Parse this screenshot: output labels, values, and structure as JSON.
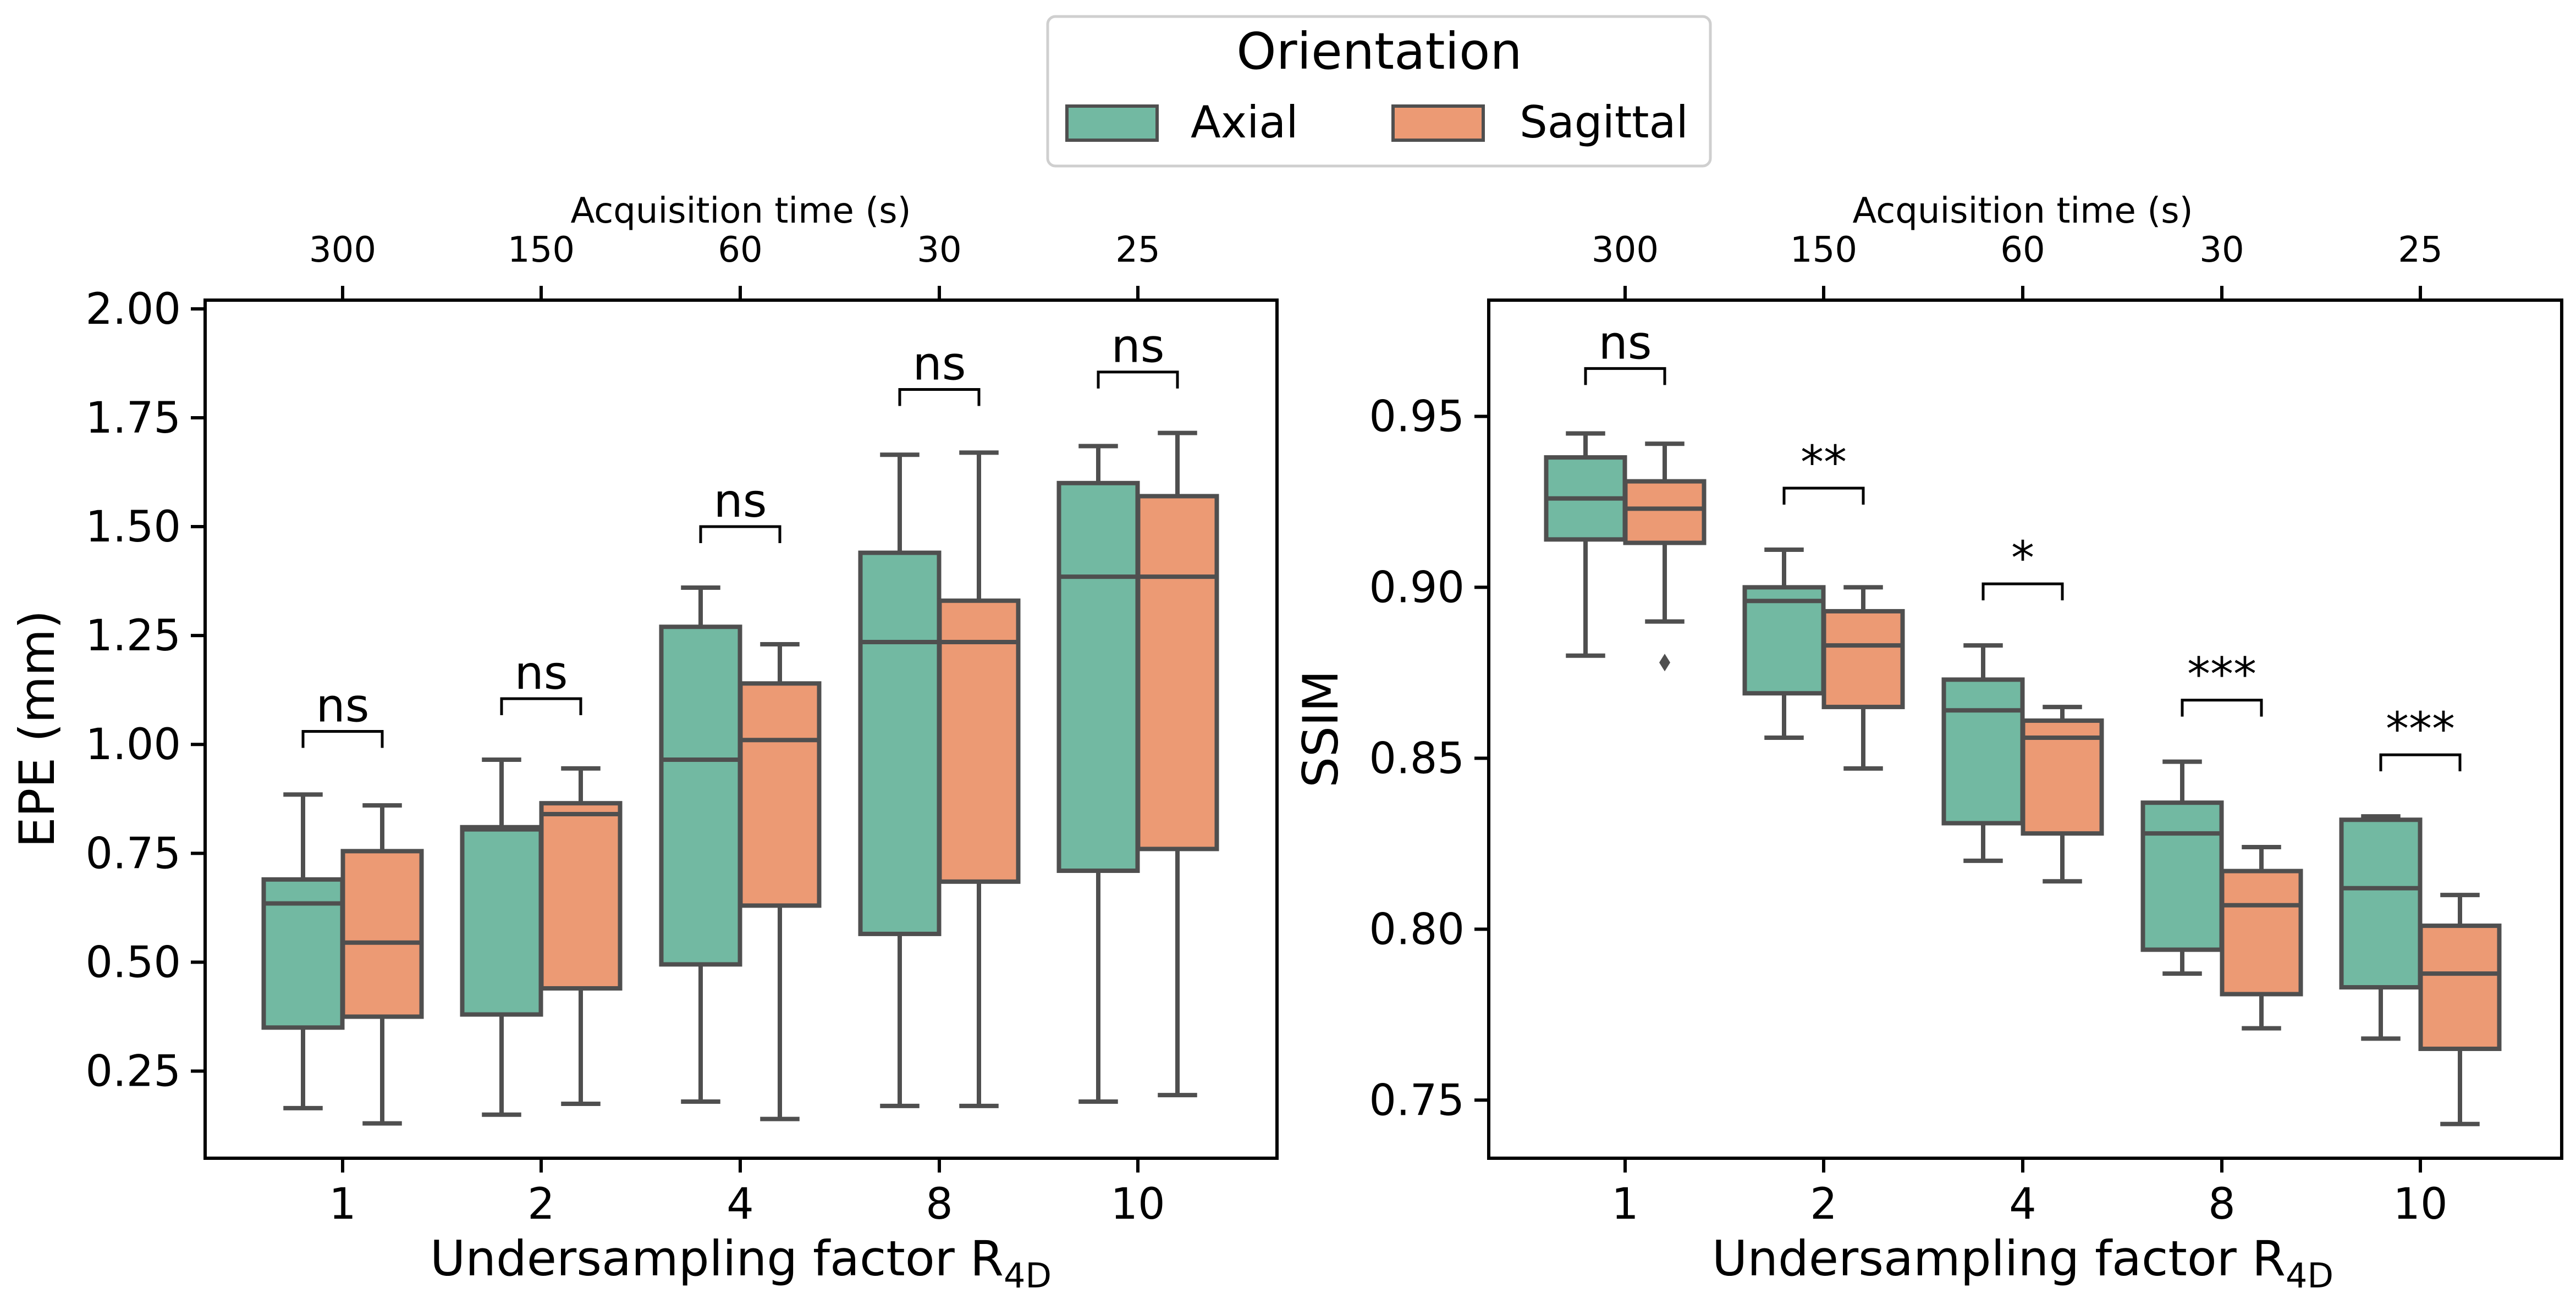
{
  "legend": {
    "title": "Orientation",
    "placement": "top-center",
    "entries": [
      {
        "label": "Axial",
        "color": "#72b9a2"
      },
      {
        "label": "Sagittal",
        "color": "#ec9a74"
      }
    ]
  },
  "colors": {
    "axial": "#72b9a2",
    "sagittal": "#ec9a74",
    "edge": "#4f4f4f"
  },
  "chart_data": [
    {
      "type": "box",
      "xlabel_main": "Undersampling factor R",
      "xlabel_sub": "4D",
      "ylabel": "EPE (mm)",
      "top_axis_label": "Acquisition time (s)",
      "categories": [
        "1",
        "2",
        "4",
        "8",
        "10"
      ],
      "top_ticks": [
        "300",
        "150",
        "60",
        "30",
        "25"
      ],
      "ylim": [
        0.05,
        2.02
      ],
      "yticks": [
        0.25,
        0.5,
        0.75,
        1.0,
        1.25,
        1.5,
        1.75,
        2.0
      ],
      "ytick_labels": [
        "0.25",
        "0.50",
        "0.75",
        "1.00",
        "1.25",
        "1.50",
        "1.75",
        "2.00"
      ],
      "grid": false,
      "series": [
        {
          "name": "Axial",
          "boxes": [
            {
              "whislo": 0.165,
              "q1": 0.35,
              "med": 0.635,
              "q3": 0.69,
              "whishi": 0.885,
              "fliers": []
            },
            {
              "whislo": 0.15,
              "q1": 0.38,
              "med": 0.805,
              "q3": 0.81,
              "whishi": 0.965,
              "fliers": []
            },
            {
              "whislo": 0.18,
              "q1": 0.495,
              "med": 0.965,
              "q3": 1.27,
              "whishi": 1.36,
              "fliers": []
            },
            {
              "whislo": 0.17,
              "q1": 0.565,
              "med": 1.235,
              "q3": 1.44,
              "whishi": 1.665,
              "fliers": []
            },
            {
              "whislo": 0.18,
              "q1": 0.71,
              "med": 1.385,
              "q3": 1.6,
              "whishi": 1.685,
              "fliers": []
            }
          ]
        },
        {
          "name": "Sagittal",
          "boxes": [
            {
              "whislo": 0.13,
              "q1": 0.375,
              "med": 0.545,
              "q3": 0.755,
              "whishi": 0.86,
              "fliers": []
            },
            {
              "whislo": 0.175,
              "q1": 0.44,
              "med": 0.84,
              "q3": 0.865,
              "whishi": 0.945,
              "fliers": []
            },
            {
              "whislo": 0.14,
              "q1": 0.63,
              "med": 1.01,
              "q3": 1.14,
              "whishi": 1.23,
              "fliers": []
            },
            {
              "whislo": 0.17,
              "q1": 0.685,
              "med": 1.235,
              "q3": 1.33,
              "whishi": 1.67,
              "fliers": []
            },
            {
              "whislo": 0.195,
              "q1": 0.76,
              "med": 1.385,
              "q3": 1.57,
              "whishi": 1.715,
              "fliers": []
            }
          ]
        }
      ],
      "annotations": [
        {
          "category": 0,
          "text": "ns",
          "y": 1.03
        },
        {
          "category": 1,
          "text": "ns",
          "y": 1.105
        },
        {
          "category": 2,
          "text": "ns",
          "y": 1.5
        },
        {
          "category": 3,
          "text": "ns",
          "y": 1.815
        },
        {
          "category": 4,
          "text": "ns",
          "y": 1.855
        }
      ]
    },
    {
      "type": "box",
      "xlabel_main": "Undersampling factor R",
      "xlabel_sub": "4D",
      "ylabel": "SSIM",
      "top_axis_label": "Acquisition time (s)",
      "categories": [
        "1",
        "2",
        "4",
        "8",
        "10"
      ],
      "top_ticks": [
        "300",
        "150",
        "60",
        "30",
        "25"
      ],
      "ylim": [
        0.733,
        0.984
      ],
      "yticks": [
        0.75,
        0.8,
        0.85,
        0.9,
        0.95
      ],
      "ytick_labels": [
        "0.75",
        "0.80",
        "0.85",
        "0.90",
        "0.95"
      ],
      "grid": false,
      "series": [
        {
          "name": "Axial",
          "boxes": [
            {
              "whislo": 0.88,
              "q1": 0.914,
              "med": 0.926,
              "q3": 0.938,
              "whishi": 0.945,
              "fliers": []
            },
            {
              "whislo": 0.856,
              "q1": 0.869,
              "med": 0.896,
              "q3": 0.9,
              "whishi": 0.911,
              "fliers": []
            },
            {
              "whislo": 0.82,
              "q1": 0.831,
              "med": 0.864,
              "q3": 0.873,
              "whishi": 0.883,
              "fliers": []
            },
            {
              "whislo": 0.787,
              "q1": 0.794,
              "med": 0.828,
              "q3": 0.837,
              "whishi": 0.849,
              "fliers": []
            },
            {
              "whislo": 0.768,
              "q1": 0.783,
              "med": 0.812,
              "q3": 0.832,
              "whishi": 0.833,
              "fliers": []
            }
          ]
        },
        {
          "name": "Sagittal",
          "boxes": [
            {
              "whislo": 0.89,
              "q1": 0.913,
              "med": 0.923,
              "q3": 0.931,
              "whishi": 0.942,
              "fliers": [
                0.878
              ]
            },
            {
              "whislo": 0.847,
              "q1": 0.865,
              "med": 0.883,
              "q3": 0.893,
              "whishi": 0.9,
              "fliers": []
            },
            {
              "whislo": 0.814,
              "q1": 0.828,
              "med": 0.856,
              "q3": 0.861,
              "whishi": 0.865,
              "fliers": []
            },
            {
              "whislo": 0.771,
              "q1": 0.781,
              "med": 0.807,
              "q3": 0.817,
              "whishi": 0.824,
              "fliers": []
            },
            {
              "whislo": 0.743,
              "q1": 0.765,
              "med": 0.787,
              "q3": 0.801,
              "whishi": 0.81,
              "fliers": []
            }
          ]
        }
      ],
      "annotations": [
        {
          "category": 0,
          "text": "ns",
          "y": 0.964
        },
        {
          "category": 1,
          "text": "**",
          "y": 0.929
        },
        {
          "category": 2,
          "text": "*",
          "y": 0.901
        },
        {
          "category": 3,
          "text": "***",
          "y": 0.867
        },
        {
          "category": 4,
          "text": "***",
          "y": 0.851
        }
      ]
    }
  ]
}
